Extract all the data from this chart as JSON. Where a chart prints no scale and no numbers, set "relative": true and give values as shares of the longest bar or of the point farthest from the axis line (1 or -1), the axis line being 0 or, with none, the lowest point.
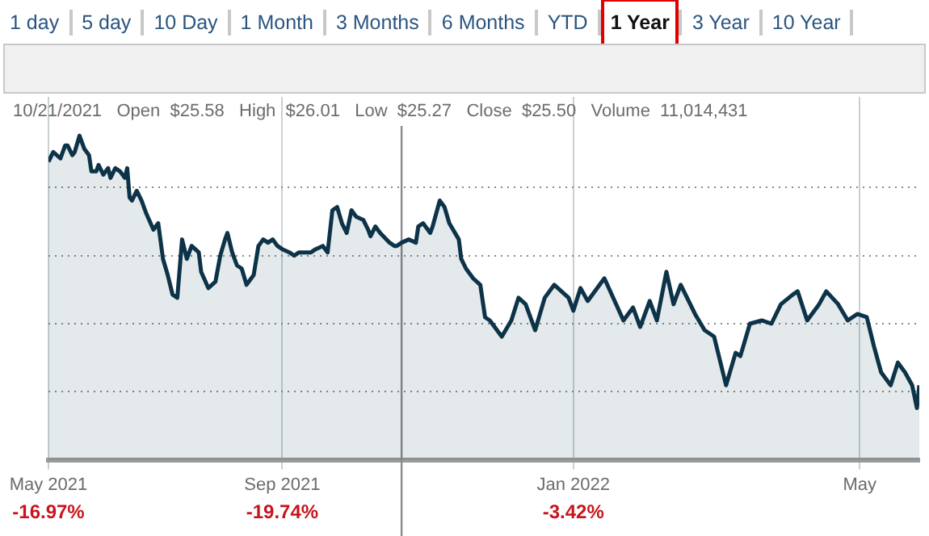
{
  "chart_data": {
    "type": "area",
    "relative": true,
    "grid": true,
    "annotations": [
      "1 day",
      "5 day",
      "10 Day",
      "1 Month",
      "3 Months",
      "6 Months",
      "YTD",
      "1 Year",
      "3 Year",
      "10 Year",
      "10/21/2021   Open  $25.58   High  $26.01   Low  $25.27   Close  $25.50   Volume  11,014,431",
      "-16.97%",
      "-19.74%",
      "-3.42%"
    ],
    "xlim": [
      "2021-05-26",
      "2022-05-26"
    ],
    "xticks": [
      {
        "value": "2021-05-26",
        "label": "May 2021"
      },
      {
        "value": "2021-09-01",
        "label": "Sep 2021"
      },
      {
        "value": "2022-01-01",
        "label": "Jan 2022"
      },
      {
        "value": "2022-05-01",
        "label": "May"
      }
    ],
    "ref_lines": [
      {
        "axis": "x",
        "value": "2021-10-21",
        "color": "#8a8a8a"
      }
    ],
    "x": [
      "2021-05-26",
      "2021-05-28",
      "2021-05-31",
      "2021-06-02",
      "2021-06-03",
      "2021-06-05",
      "2021-06-06",
      "2021-06-08",
      "2021-06-10",
      "2021-06-12",
      "2021-06-13",
      "2021-06-15",
      "2021-06-16",
      "2021-06-18",
      "2021-06-20",
      "2021-06-21",
      "2021-06-23",
      "2021-06-25",
      "2021-06-27",
      "2021-06-28",
      "2021-06-29",
      "2021-06-30",
      "2021-07-02",
      "2021-07-04",
      "2021-07-06",
      "2021-07-09",
      "2021-07-11",
      "2021-07-13",
      "2021-07-15",
      "2021-07-17",
      "2021-07-19",
      "2021-07-21",
      "2021-07-23",
      "2021-07-25",
      "2021-07-28",
      "2021-07-29",
      "2021-08-01",
      "2021-08-04",
      "2021-08-06",
      "2021-08-08",
      "2021-08-09",
      "2021-08-11",
      "2021-08-13",
      "2021-08-15",
      "2021-08-17",
      "2021-08-19",
      "2021-08-20",
      "2021-08-22",
      "2021-08-24",
      "2021-08-26",
      "2021-08-28",
      "2021-08-30",
      "2021-09-01",
      "2021-09-04",
      "2021-09-06",
      "2021-09-08",
      "2021-09-10",
      "2021-09-13",
      "2021-09-15",
      "2021-09-18",
      "2021-09-20",
      "2021-09-22",
      "2021-09-24",
      "2021-09-26",
      "2021-09-28",
      "2021-09-30",
      "2021-10-02",
      "2021-10-05",
      "2021-10-07",
      "2021-10-08",
      "2021-10-10",
      "2021-10-12",
      "2021-10-16",
      "2021-10-18",
      "2021-10-19",
      "2021-10-21",
      "2021-10-24",
      "2021-10-27",
      "2021-10-28",
      "2021-10-30",
      "2021-11-02",
      "2021-11-03",
      "2021-11-06",
      "2021-11-08",
      "2021-11-10",
      "2021-11-14",
      "2021-11-15",
      "2021-11-17",
      "2021-11-20",
      "2021-11-23",
      "2021-11-25",
      "2021-11-27",
      "2021-12-02",
      "2021-12-06",
      "2021-12-09",
      "2021-12-12",
      "2021-12-16",
      "2021-12-20",
      "2021-12-24",
      "2021-12-30",
      "2022-01-01",
      "2022-01-04",
      "2022-01-07",
      "2022-01-14",
      "2022-01-22",
      "2022-01-26",
      "2022-01-29",
      "2022-02-02",
      "2022-02-05",
      "2022-02-09",
      "2022-02-12",
      "2022-02-15",
      "2022-02-21",
      "2022-02-25",
      "2022-03-01",
      "2022-03-06",
      "2022-03-10",
      "2022-03-12",
      "2022-03-16",
      "2022-03-21",
      "2022-03-25",
      "2022-03-29",
      "2022-04-03",
      "2022-04-05",
      "2022-04-09",
      "2022-04-14",
      "2022-04-17",
      "2022-04-22",
      "2022-04-26",
      "2022-04-30",
      "2022-05-04",
      "2022-05-07",
      "2022-05-10",
      "2022-05-14",
      "2022-05-17",
      "2022-05-20",
      "2022-05-23",
      "2022-05-25",
      "2022-05-26"
    ],
    "series": [
      {
        "color": "#0d3349",
        "values": [
          0.92,
          0.95,
          0.93,
          0.97,
          0.97,
          0.94,
          0.95,
          1.0,
          0.96,
          0.94,
          0.89,
          0.89,
          0.91,
          0.88,
          0.9,
          0.87,
          0.9,
          0.89,
          0.87,
          0.9,
          0.81,
          0.8,
          0.83,
          0.8,
          0.76,
          0.71,
          0.73,
          0.62,
          0.57,
          0.51,
          0.5,
          0.68,
          0.62,
          0.66,
          0.64,
          0.58,
          0.53,
          0.55,
          0.63,
          0.68,
          0.7,
          0.64,
          0.6,
          0.59,
          0.54,
          0.56,
          0.57,
          0.66,
          0.68,
          0.67,
          0.68,
          0.66,
          0.65,
          0.64,
          0.63,
          0.64,
          0.64,
          0.64,
          0.65,
          0.66,
          0.64,
          0.77,
          0.78,
          0.73,
          0.7,
          0.77,
          0.75,
          0.74,
          0.71,
          0.69,
          0.72,
          0.7,
          0.67,
          0.66,
          0.66,
          0.67,
          0.68,
          0.67,
          0.72,
          0.73,
          0.7,
          0.72,
          0.8,
          0.78,
          0.73,
          0.68,
          0.62,
          0.59,
          0.56,
          0.54,
          0.44,
          0.43,
          0.38,
          0.43,
          0.5,
          0.48,
          0.4,
          0.5,
          0.54,
          0.5,
          0.46,
          0.53,
          0.49,
          0.56,
          0.43,
          0.47,
          0.41,
          0.49,
          0.43,
          0.58,
          0.48,
          0.54,
          0.45,
          0.4,
          0.38,
          0.23,
          0.33,
          0.32,
          0.42,
          0.43,
          0.42,
          0.48,
          0.51,
          0.52,
          0.43,
          0.48,
          0.52,
          0.48,
          0.43,
          0.45,
          0.44,
          0.35,
          0.27,
          0.23,
          0.3,
          0.27,
          0.23,
          0.16,
          0.23
        ]
      }
    ]
  }
}
